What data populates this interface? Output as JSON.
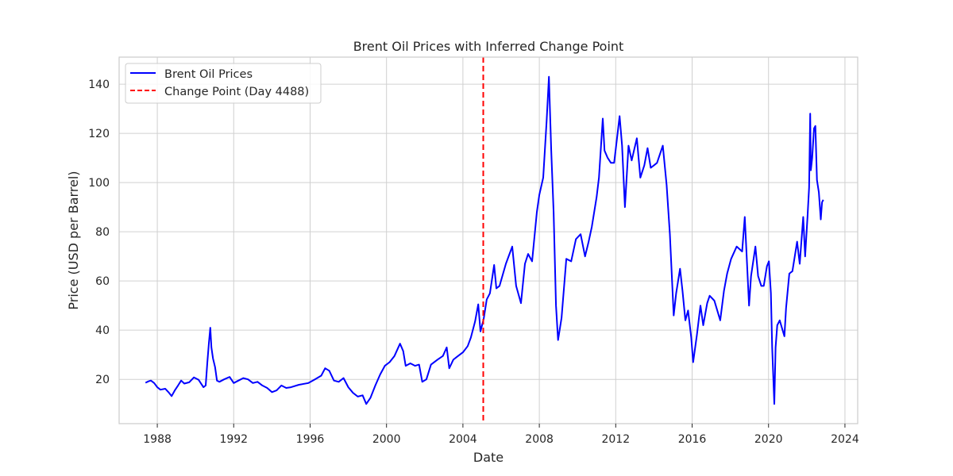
{
  "chart_data": {
    "type": "line",
    "title": "Brent Oil Prices with Inferred Change Point",
    "xlabel": "Date",
    "ylabel": "Price (USD per Barrel)",
    "xlim": [
      "1986-01-01",
      "2024-09-01"
    ],
    "ylim": [
      2,
      151
    ],
    "x_ticks": [
      "1988",
      "1992",
      "1996",
      "2000",
      "2004",
      "2008",
      "2012",
      "2016",
      "2020",
      "2024"
    ],
    "y_ticks": [
      "20",
      "40",
      "60",
      "80",
      "100",
      "120",
      "140"
    ],
    "grid": true,
    "legend_position": "upper left",
    "colors": {
      "series": "#0000ff",
      "change_point": "#ff0000",
      "grid": "#d0d0d0",
      "spine": "#cccccc"
    },
    "series": [
      {
        "name": "Brent Oil Prices",
        "x": [
          "1987-05-20",
          "1987-07-15",
          "1987-09-01",
          "1987-11-01",
          "1988-01-01",
          "1988-03-01",
          "1988-06-01",
          "1988-08-01",
          "1988-10-01",
          "1988-12-01",
          "1989-02-01",
          "1989-04-01",
          "1989-06-01",
          "1989-09-01",
          "1989-12-01",
          "1990-03-01",
          "1990-06-01",
          "1990-07-15",
          "1990-08-15",
          "1990-09-15",
          "1990-10-10",
          "1990-11-01",
          "1990-12-01",
          "1991-01-10",
          "1991-02-15",
          "1991-04-01",
          "1991-07-01",
          "1991-10-15",
          "1992-01-01",
          "1992-04-01",
          "1992-07-01",
          "1992-10-01",
          "1993-01-01",
          "1993-04-01",
          "1993-07-01",
          "1993-10-01",
          "1994-01-01",
          "1994-04-01",
          "1994-07-01",
          "1994-10-01",
          "1995-01-01",
          "1995-06-01",
          "1995-12-01",
          "1996-04-01",
          "1996-08-01",
          "1996-10-15",
          "1997-01-01",
          "1997-04-01",
          "1997-07-01",
          "1997-10-01",
          "1998-01-01",
          "1998-04-01",
          "1998-07-01",
          "1998-10-01",
          "1998-12-10",
          "1999-03-01",
          "1999-06-01",
          "1999-09-01",
          "1999-12-01",
          "2000-03-01",
          "2000-06-01",
          "2000-09-15",
          "2000-11-15",
          "2001-01-01",
          "2001-04-01",
          "2001-07-01",
          "2001-09-15",
          "2001-11-15",
          "2002-02-01",
          "2002-05-01",
          "2002-09-01",
          "2002-12-15",
          "2003-02-25",
          "2003-04-15",
          "2003-07-01",
          "2003-10-01",
          "2004-01-01",
          "2004-04-01",
          "2004-06-01",
          "2004-08-20",
          "2004-10-20",
          "2004-12-01",
          "2005-02-01",
          "2005-04-01",
          "2005-06-01",
          "2005-08-20",
          "2005-10-01",
          "2005-12-01",
          "2006-04-01",
          "2006-08-01",
          "2006-10-15",
          "2007-01-15",
          "2007-04-01",
          "2007-06-01",
          "2007-08-15",
          "2007-11-15",
          "2008-01-01",
          "2008-03-15",
          "2008-05-20",
          "2008-07-03",
          "2008-08-15",
          "2008-10-01",
          "2008-11-15",
          "2008-12-25",
          "2009-03-01",
          "2009-06-01",
          "2009-09-01",
          "2009-12-01",
          "2010-03-01",
          "2010-05-25",
          "2010-08-01",
          "2010-10-01",
          "2010-12-31",
          "2011-02-15",
          "2011-04-28",
          "2011-06-01",
          "2011-08-01",
          "2011-10-01",
          "2011-12-01",
          "2012-03-15",
          "2012-05-01",
          "2012-06-25",
          "2012-09-01",
          "2012-11-01",
          "2013-02-08",
          "2013-04-15",
          "2013-07-01",
          "2013-09-01",
          "2013-11-01",
          "2014-01-01",
          "2014-03-01",
          "2014-06-20",
          "2014-09-01",
          "2014-11-01",
          "2015-01-13",
          "2015-03-01",
          "2015-05-15",
          "2015-07-01",
          "2015-08-24",
          "2015-10-15",
          "2015-12-15",
          "2016-01-20",
          "2016-04-01",
          "2016-06-08",
          "2016-08-01",
          "2016-10-15",
          "2016-12-01",
          "2017-03-01",
          "2017-06-21",
          "2017-09-01",
          "2017-11-01",
          "2018-01-15",
          "2018-05-01",
          "2018-08-15",
          "2018-10-03",
          "2018-12-24",
          "2019-02-01",
          "2019-04-25",
          "2019-06-15",
          "2019-08-15",
          "2019-10-01",
          "2019-12-01",
          "2020-01-08",
          "2020-02-15",
          "2020-03-10",
          "2020-04-21",
          "2020-05-15",
          "2020-06-15",
          "2020-08-01",
          "2020-10-30",
          "2020-12-01",
          "2021-02-01",
          "2021-04-01",
          "2021-07-01",
          "2021-08-20",
          "2021-10-25",
          "2021-12-01",
          "2022-01-15",
          "2022-02-15",
          "2022-03-08",
          "2022-03-20",
          "2022-04-15",
          "2022-05-20",
          "2022-06-14",
          "2022-07-15",
          "2022-08-20",
          "2022-09-26",
          "2022-10-20",
          "2022-11-14"
        ],
        "y": [
          18.6,
          19.2,
          19.5,
          18.5,
          16.8,
          15.8,
          16.2,
          14.8,
          13.2,
          15.5,
          17.5,
          19.5,
          18.3,
          18.8,
          20.8,
          19.8,
          16.8,
          17.5,
          27.0,
          35.0,
          41.0,
          33.0,
          28.5,
          25.0,
          19.5,
          19.0,
          20.0,
          21.0,
          18.5,
          19.5,
          20.5,
          20.0,
          18.5,
          19.0,
          17.5,
          16.5,
          14.8,
          15.5,
          17.5,
          16.5,
          16.8,
          17.8,
          18.5,
          20.0,
          21.5,
          24.5,
          23.5,
          19.5,
          19.0,
          20.5,
          16.8,
          14.5,
          13.0,
          13.5,
          10.0,
          12.5,
          17.5,
          22.0,
          25.5,
          27.0,
          29.5,
          34.5,
          31.5,
          25.5,
          26.5,
          25.5,
          26.0,
          19.0,
          20.0,
          26.0,
          28.0,
          29.5,
          33.0,
          24.5,
          28.0,
          29.5,
          31.0,
          33.5,
          37.0,
          43.5,
          50.5,
          39.5,
          44.5,
          52.5,
          55.0,
          66.5,
          57.0,
          58.0,
          67.0,
          74.0,
          58.0,
          51.0,
          67.0,
          71.0,
          68.0,
          88.0,
          95.0,
          102.0,
          125.0,
          143.0,
          113.0,
          88.0,
          50.0,
          36.0,
          45.0,
          69.0,
          68.0,
          77.0,
          79.0,
          70.0,
          76.0,
          82.0,
          94.0,
          102.0,
          126.0,
          113.0,
          110.0,
          108.0,
          108.0,
          127.0,
          115.0,
          90.0,
          115.0,
          109.0,
          118.0,
          102.0,
          107.0,
          114.0,
          106.0,
          107.0,
          108.0,
          115.0,
          99.0,
          79.0,
          46.0,
          55.0,
          65.0,
          56.0,
          44.0,
          48.0,
          37.0,
          27.0,
          38.0,
          50.0,
          42.0,
          51.0,
          54.0,
          52.0,
          44.0,
          56.0,
          63.0,
          69.0,
          74.0,
          72.0,
          86.0,
          50.0,
          62.0,
          74.0,
          62.0,
          58.0,
          58.0,
          66.0,
          68.0,
          55.0,
          33.0,
          10.0,
          33.0,
          42.0,
          44.0,
          37.5,
          49.0,
          63.0,
          64.0,
          76.0,
          67.0,
          86.0,
          70.0,
          86.0,
          98.0,
          128.0,
          105.0,
          110.0,
          122.0,
          123.0,
          101.0,
          96.0,
          85.0,
          92.0,
          93.0
        ]
      },
      {
        "name": "Change Point (Day 4488)",
        "x": [
          "2005-01-24",
          "2005-01-24"
        ],
        "style": "dashed-vertical"
      }
    ]
  }
}
